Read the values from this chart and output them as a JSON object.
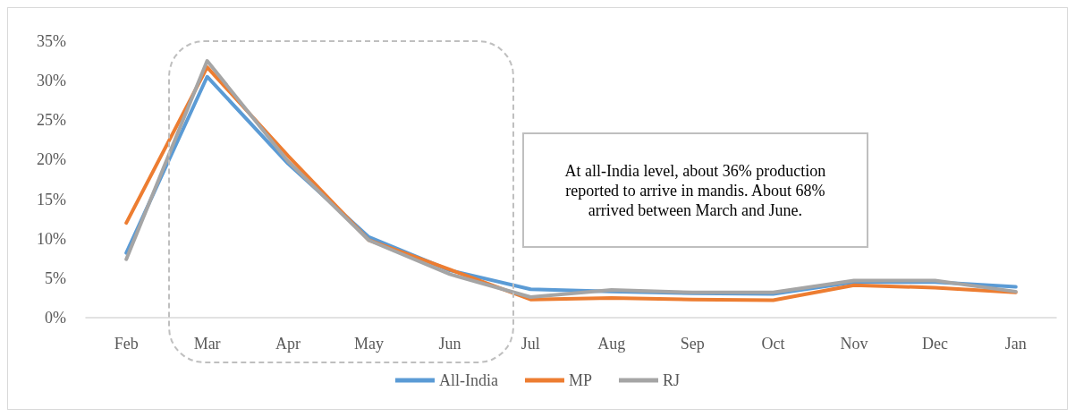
{
  "chart_data": {
    "type": "line",
    "categories": [
      "Feb",
      "Mar",
      "Apr",
      "May",
      "Jun",
      "Jul",
      "Aug",
      "Sep",
      "Oct",
      "Nov",
      "Dec",
      "Jan"
    ],
    "series": [
      {
        "name": "All-India",
        "color": "#5b9bd5",
        "values": [
          8.2,
          30.5,
          19.5,
          10.2,
          6.0,
          3.6,
          3.3,
          3.1,
          3.0,
          4.5,
          4.5,
          3.9
        ]
      },
      {
        "name": "MP",
        "color": "#ed7d31",
        "values": [
          12.0,
          31.7,
          20.5,
          9.8,
          6.1,
          2.3,
          2.5,
          2.3,
          2.2,
          4.1,
          3.8,
          3.2
        ]
      },
      {
        "name": "RJ",
        "color": "#a5a5a5",
        "values": [
          7.4,
          32.5,
          19.8,
          9.8,
          5.5,
          2.6,
          3.5,
          3.2,
          3.2,
          4.7,
          4.7,
          3.3
        ]
      }
    ],
    "ylim": [
      0,
      35
    ],
    "yticks": [
      {
        "value": 0,
        "label": "0%"
      },
      {
        "value": 5,
        "label": "5%"
      },
      {
        "value": 10,
        "label": "10%"
      },
      {
        "value": 15,
        "label": "15%"
      },
      {
        "value": 20,
        "label": "20%"
      },
      {
        "value": 25,
        "label": "25%"
      },
      {
        "value": 30,
        "label": "30%"
      },
      {
        "value": 35,
        "label": "35%"
      }
    ],
    "annotations": [
      "At all-India level, about 36% production reported to arrive in mandis. About 68% arrived between March and June."
    ],
    "grid": false,
    "legend": "bottom",
    "marker": "none",
    "line_style": "solid"
  }
}
